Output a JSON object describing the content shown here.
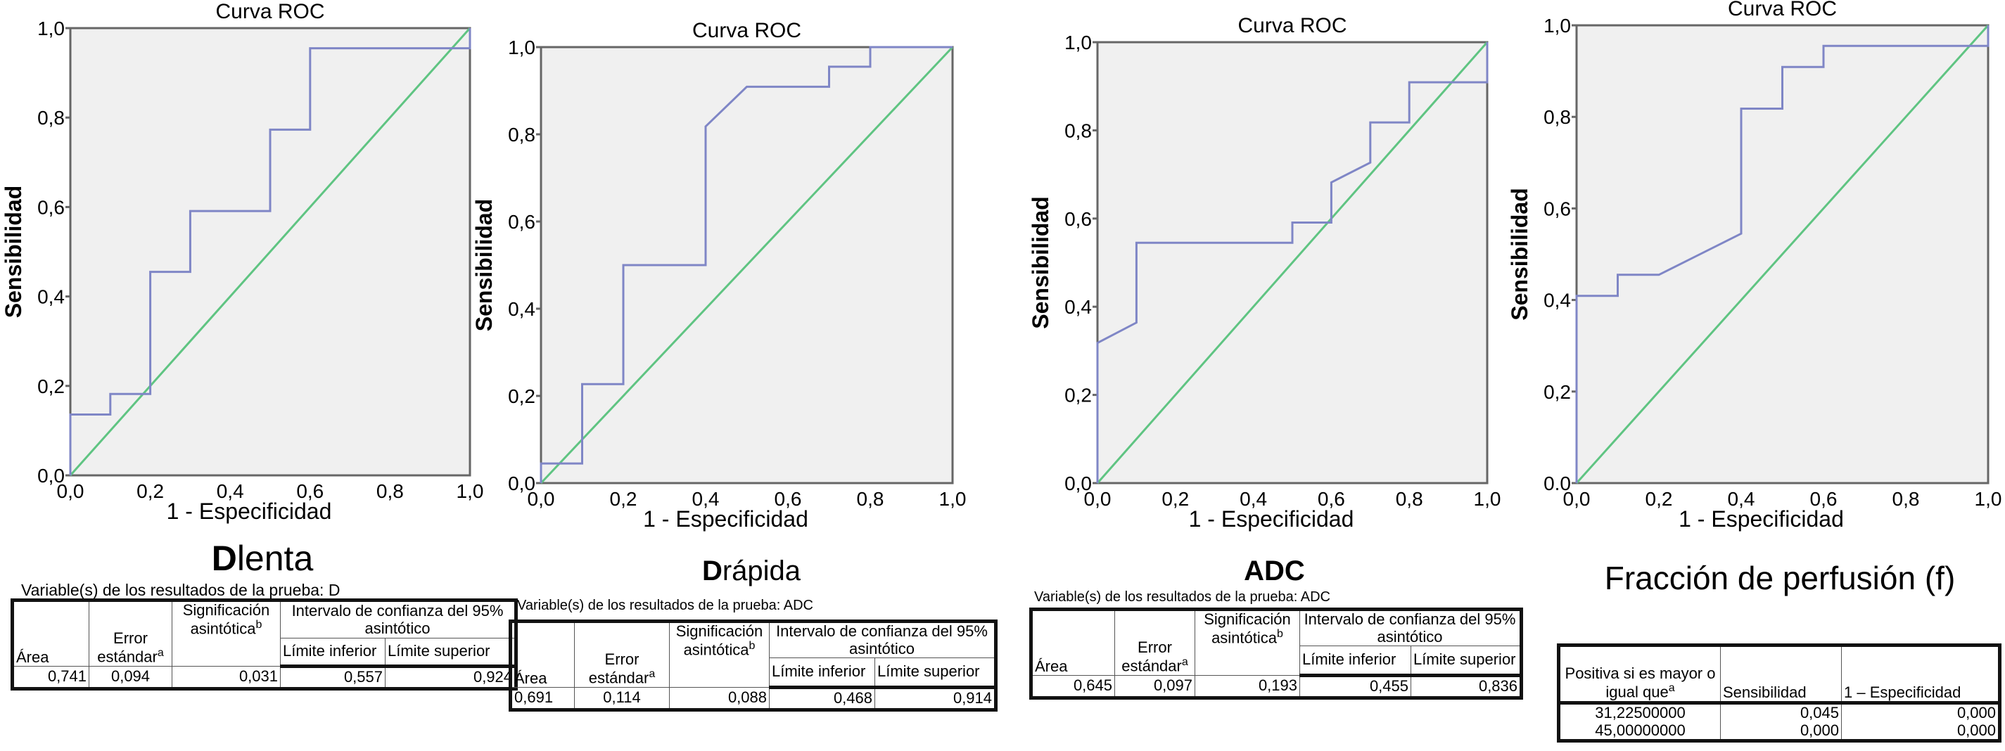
{
  "colors": {
    "plot_bg": "#f0f0f0",
    "roc_curve": "#7f86c6",
    "reference_line": "#5fc482",
    "axis": "#666666"
  },
  "chart_data": [
    {
      "type": "line",
      "title": "Curva ROC",
      "xlabel": "1 - Especificidad",
      "ylabel": "Sensibilidad",
      "xlim": [
        0,
        1
      ],
      "ylim": [
        0,
        1
      ],
      "xticks": [
        "0,0",
        "0,2",
        "0,4",
        "0,6",
        "0,8",
        "1,0"
      ],
      "yticks": [
        "0,0",
        "0,2",
        "0,4",
        "0,6",
        "0,8",
        "1,0"
      ],
      "grid": false,
      "series": [
        {
          "x": [
            0,
            0,
            0.1,
            0.1,
            0.2,
            0.2,
            0.3,
            0.3,
            0.5,
            0.5,
            0.6,
            0.6,
            1,
            1
          ],
          "y": [
            0,
            0.136,
            0.136,
            0.182,
            0.182,
            0.455,
            0.455,
            0.591,
            0.591,
            0.773,
            0.773,
            0.955,
            0.955,
            1
          ]
        },
        {
          "x": [
            0,
            1
          ],
          "y": [
            0,
            1
          ]
        }
      ]
    },
    {
      "type": "line",
      "title": "Curva ROC",
      "xlabel": "1 - Especificidad",
      "ylabel": "Sensibilidad",
      "xlim": [
        0,
        1
      ],
      "ylim": [
        0,
        1
      ],
      "xticks": [
        "0,0",
        "0,2",
        "0,4",
        "0,6",
        "0,8",
        "1,0"
      ],
      "yticks": [
        "0,0",
        "0,2",
        "0,4",
        "0,6",
        "0,8",
        "1,0"
      ],
      "grid": false,
      "series": [
        {
          "x": [
            0,
            0,
            0.1,
            0.1,
            0.2,
            0.2,
            0.4,
            0.4,
            0.5,
            0.7,
            0.7,
            0.8,
            0.8,
            1
          ],
          "y": [
            0,
            0.045,
            0.045,
            0.227,
            0.227,
            0.5,
            0.5,
            0.818,
            0.909,
            0.909,
            0.955,
            0.955,
            1,
            1
          ]
        },
        {
          "x": [
            0,
            1
          ],
          "y": [
            0,
            1
          ]
        }
      ]
    },
    {
      "type": "line",
      "title": "Curva ROC",
      "xlabel": "1 - Especificidad",
      "ylabel": "Sensibilidad",
      "xlim": [
        0,
        1
      ],
      "ylim": [
        0,
        1
      ],
      "xticks": [
        "0,0",
        "0,2",
        "0,4",
        "0,6",
        "0,8",
        "1,0"
      ],
      "yticks": [
        "0,0",
        "0,2",
        "0,4",
        "0,6",
        "0,8",
        "1,0"
      ],
      "grid": false,
      "series": [
        {
          "x": [
            0,
            0,
            0.1,
            0.1,
            0.5,
            0.5,
            0.6,
            0.6,
            0.7,
            0.7,
            0.8,
            0.8,
            1,
            1
          ],
          "y": [
            0,
            0.318,
            0.364,
            0.545,
            0.545,
            0.591,
            0.591,
            0.682,
            0.727,
            0.818,
            0.818,
            0.909,
            0.909,
            1
          ]
        },
        {
          "x": [
            0,
            1
          ],
          "y": [
            0,
            1
          ]
        }
      ]
    },
    {
      "type": "line",
      "title": "Curva ROC",
      "xlabel": "1 - Especificidad",
      "ylabel": "Sensibilidad",
      "xlim": [
        0,
        1
      ],
      "ylim": [
        0,
        1
      ],
      "xticks": [
        "0,0",
        "0,2",
        "0,4",
        "0,6",
        "0,8",
        "1,0"
      ],
      "yticks": [
        "0.0",
        "0,2",
        "0,4",
        "0,6",
        "0,8",
        "1,0"
      ],
      "grid": false,
      "series": [
        {
          "x": [
            0,
            0,
            0.1,
            0.1,
            0.2,
            0.4,
            0.4,
            0.5,
            0.5,
            0.6,
            0.6,
            1,
            1
          ],
          "y": [
            0,
            0.409,
            0.409,
            0.455,
            0.455,
            0.545,
            0.818,
            0.818,
            0.909,
            0.909,
            0.955,
            0.955,
            1
          ]
        },
        {
          "x": [
            0,
            1
          ],
          "y": [
            0,
            1
          ]
        }
      ]
    }
  ],
  "tables": [
    {
      "title_bold": "D",
      "title_rest": "lenta",
      "subtitle": "Variable(s) de los resultados de la prueba: D",
      "h": {
        "area": "Área",
        "error": "Error estándar",
        "error_sup": "a",
        "sig": "Significación asintótica",
        "sig_sup": "b",
        "ci": "Intervalo de confianza del 95% asintótico",
        "lower": "Límite inferior",
        "upper": "Límite superior"
      },
      "row": [
        "0,741",
        "0,094",
        "0,031",
        "0,557",
        "0,924"
      ]
    },
    {
      "title_bold": "D",
      "title_rest": "rápida",
      "subtitle": "Variable(s) de los resultados de la prueba: ADC",
      "h": {
        "area": "Área",
        "error": "Error estándar",
        "error_sup": "a",
        "sig": "Significación asintótica",
        "sig_sup": "b",
        "ci": "Intervalo de confianza del 95% asintótico",
        "lower": "Límite inferior",
        "upper": "Límite superior"
      },
      "row": [
        "0,691",
        "0,114",
        "0,088",
        "0,468",
        "0,914"
      ]
    },
    {
      "title_bold": "ADC",
      "title_rest": "",
      "subtitle": "Variable(s) de los resultados de la prueba: ADC",
      "h": {
        "area": "Área",
        "error": "Error estándar",
        "error_sup": "a",
        "sig": "Significación asintótica",
        "sig_sup": "b",
        "ci": "Intervalo de confianza del 95% asintótico",
        "lower": "Límite inferior",
        "upper": "Límite superior"
      },
      "row": [
        "0,645",
        "0,097",
        "0,193",
        "0,455",
        "0,836"
      ]
    },
    {
      "title": "Fracción de perfusión (f)",
      "h": {
        "pos": "Positiva si es mayor o igual que",
        "pos_sup": "a",
        "sens": "Sensibilidad",
        "spec": "1 – Especificidad"
      },
      "rows": [
        [
          "31,22500000",
          "0,045",
          "0,000"
        ],
        [
          "45,00000000",
          "0,000",
          "0,000"
        ]
      ]
    }
  ]
}
